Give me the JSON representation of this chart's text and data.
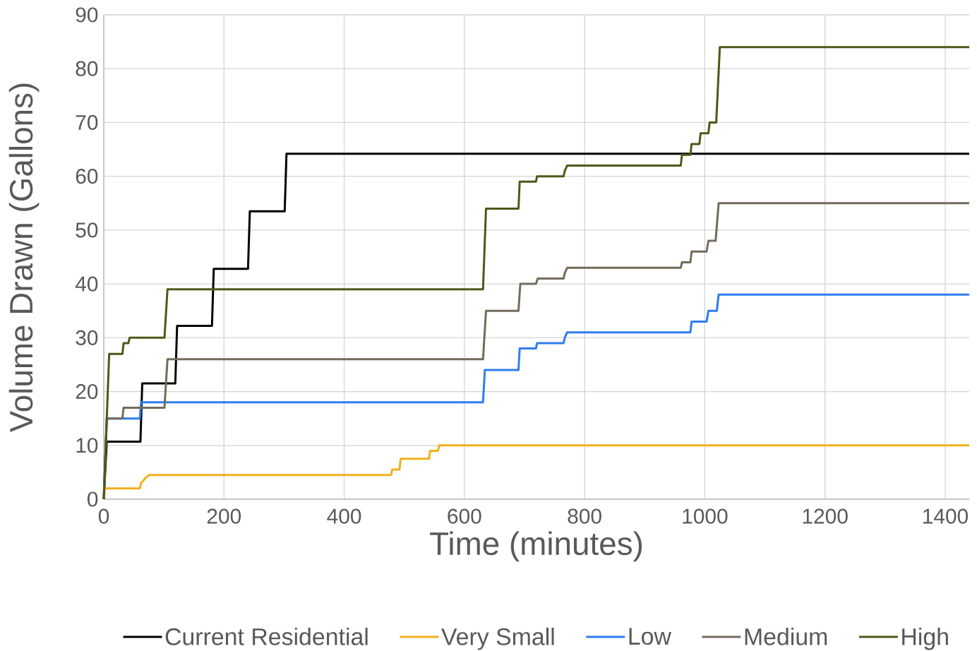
{
  "chart_data": {
    "type": "line",
    "xlabel": "Time (minutes)",
    "ylabel": "Volume Drawn (Gallons)",
    "xlim": [
      0,
      1440
    ],
    "ylim": [
      0,
      90
    ],
    "xticks": [
      0,
      200,
      400,
      600,
      800,
      1000,
      1200,
      1400
    ],
    "yticks": [
      0,
      10,
      20,
      30,
      40,
      50,
      60,
      70,
      80,
      90
    ],
    "grid": true,
    "legend": "bottom",
    "marker": "none",
    "line_style": "solid",
    "series": [
      {
        "name": "Current Residential",
        "color": "#000000",
        "x": [
          0,
          5,
          61,
          64,
          119,
          122,
          180,
          183,
          240,
          243,
          301,
          304,
          1440
        ],
        "values": [
          0,
          10.7,
          10.7,
          21.5,
          21.5,
          32.2,
          32.2,
          42.8,
          42.8,
          53.5,
          53.5,
          64.2,
          64.2
        ]
      },
      {
        "name": "Very Small",
        "color": "#f2b01e",
        "x": [
          0,
          2,
          60,
          62,
          66,
          70,
          75,
          478,
          480,
          492,
          494,
          541,
          543,
          556,
          558,
          1440
        ],
        "values": [
          0,
          2,
          2,
          3,
          3.5,
          4,
          4.5,
          4.5,
          5.5,
          5.5,
          7.5,
          7.5,
          9,
          9,
          10,
          10
        ]
      },
      {
        "name": "Low",
        "color": "#2f7ded",
        "x": [
          0,
          5,
          60,
          62,
          631,
          634,
          690,
          692,
          719,
          721,
          765,
          767,
          771,
          976,
          978,
          1003,
          1006,
          1020,
          1023,
          1440
        ],
        "values": [
          0,
          15,
          15,
          18,
          18,
          24,
          24,
          28,
          28,
          29,
          29,
          30,
          31,
          31,
          33,
          33,
          35,
          35,
          38,
          38
        ]
      },
      {
        "name": "Medium",
        "color": "#736b5b",
        "x": [
          0,
          5,
          31,
          33,
          101,
          106,
          631,
          636,
          690,
          693,
          719,
          722,
          765,
          767,
          771,
          960,
          962,
          976,
          978,
          1003,
          1006,
          1018,
          1023,
          1440
        ],
        "values": [
          0,
          15,
          15,
          17,
          17,
          26,
          26,
          35,
          35,
          40,
          40,
          41,
          41,
          42,
          43,
          43,
          44,
          44,
          46,
          46,
          48,
          48,
          55,
          55
        ]
      },
      {
        "name": "High",
        "color": "#4b5a18",
        "x": [
          0,
          9,
          31,
          33,
          41,
          43,
          101,
          106,
          631,
          636,
          690,
          692,
          719,
          721,
          765,
          767,
          771,
          960,
          962,
          976,
          978,
          991,
          993,
          1006,
          1008,
          1019,
          1025,
          1440
        ],
        "values": [
          0,
          27,
          27,
          29,
          29,
          30,
          30,
          39,
          39,
          54,
          54,
          59,
          59,
          60,
          60,
          61,
          62,
          62,
          64,
          64,
          66,
          66,
          68,
          68,
          70,
          70,
          84,
          84
        ]
      }
    ]
  }
}
